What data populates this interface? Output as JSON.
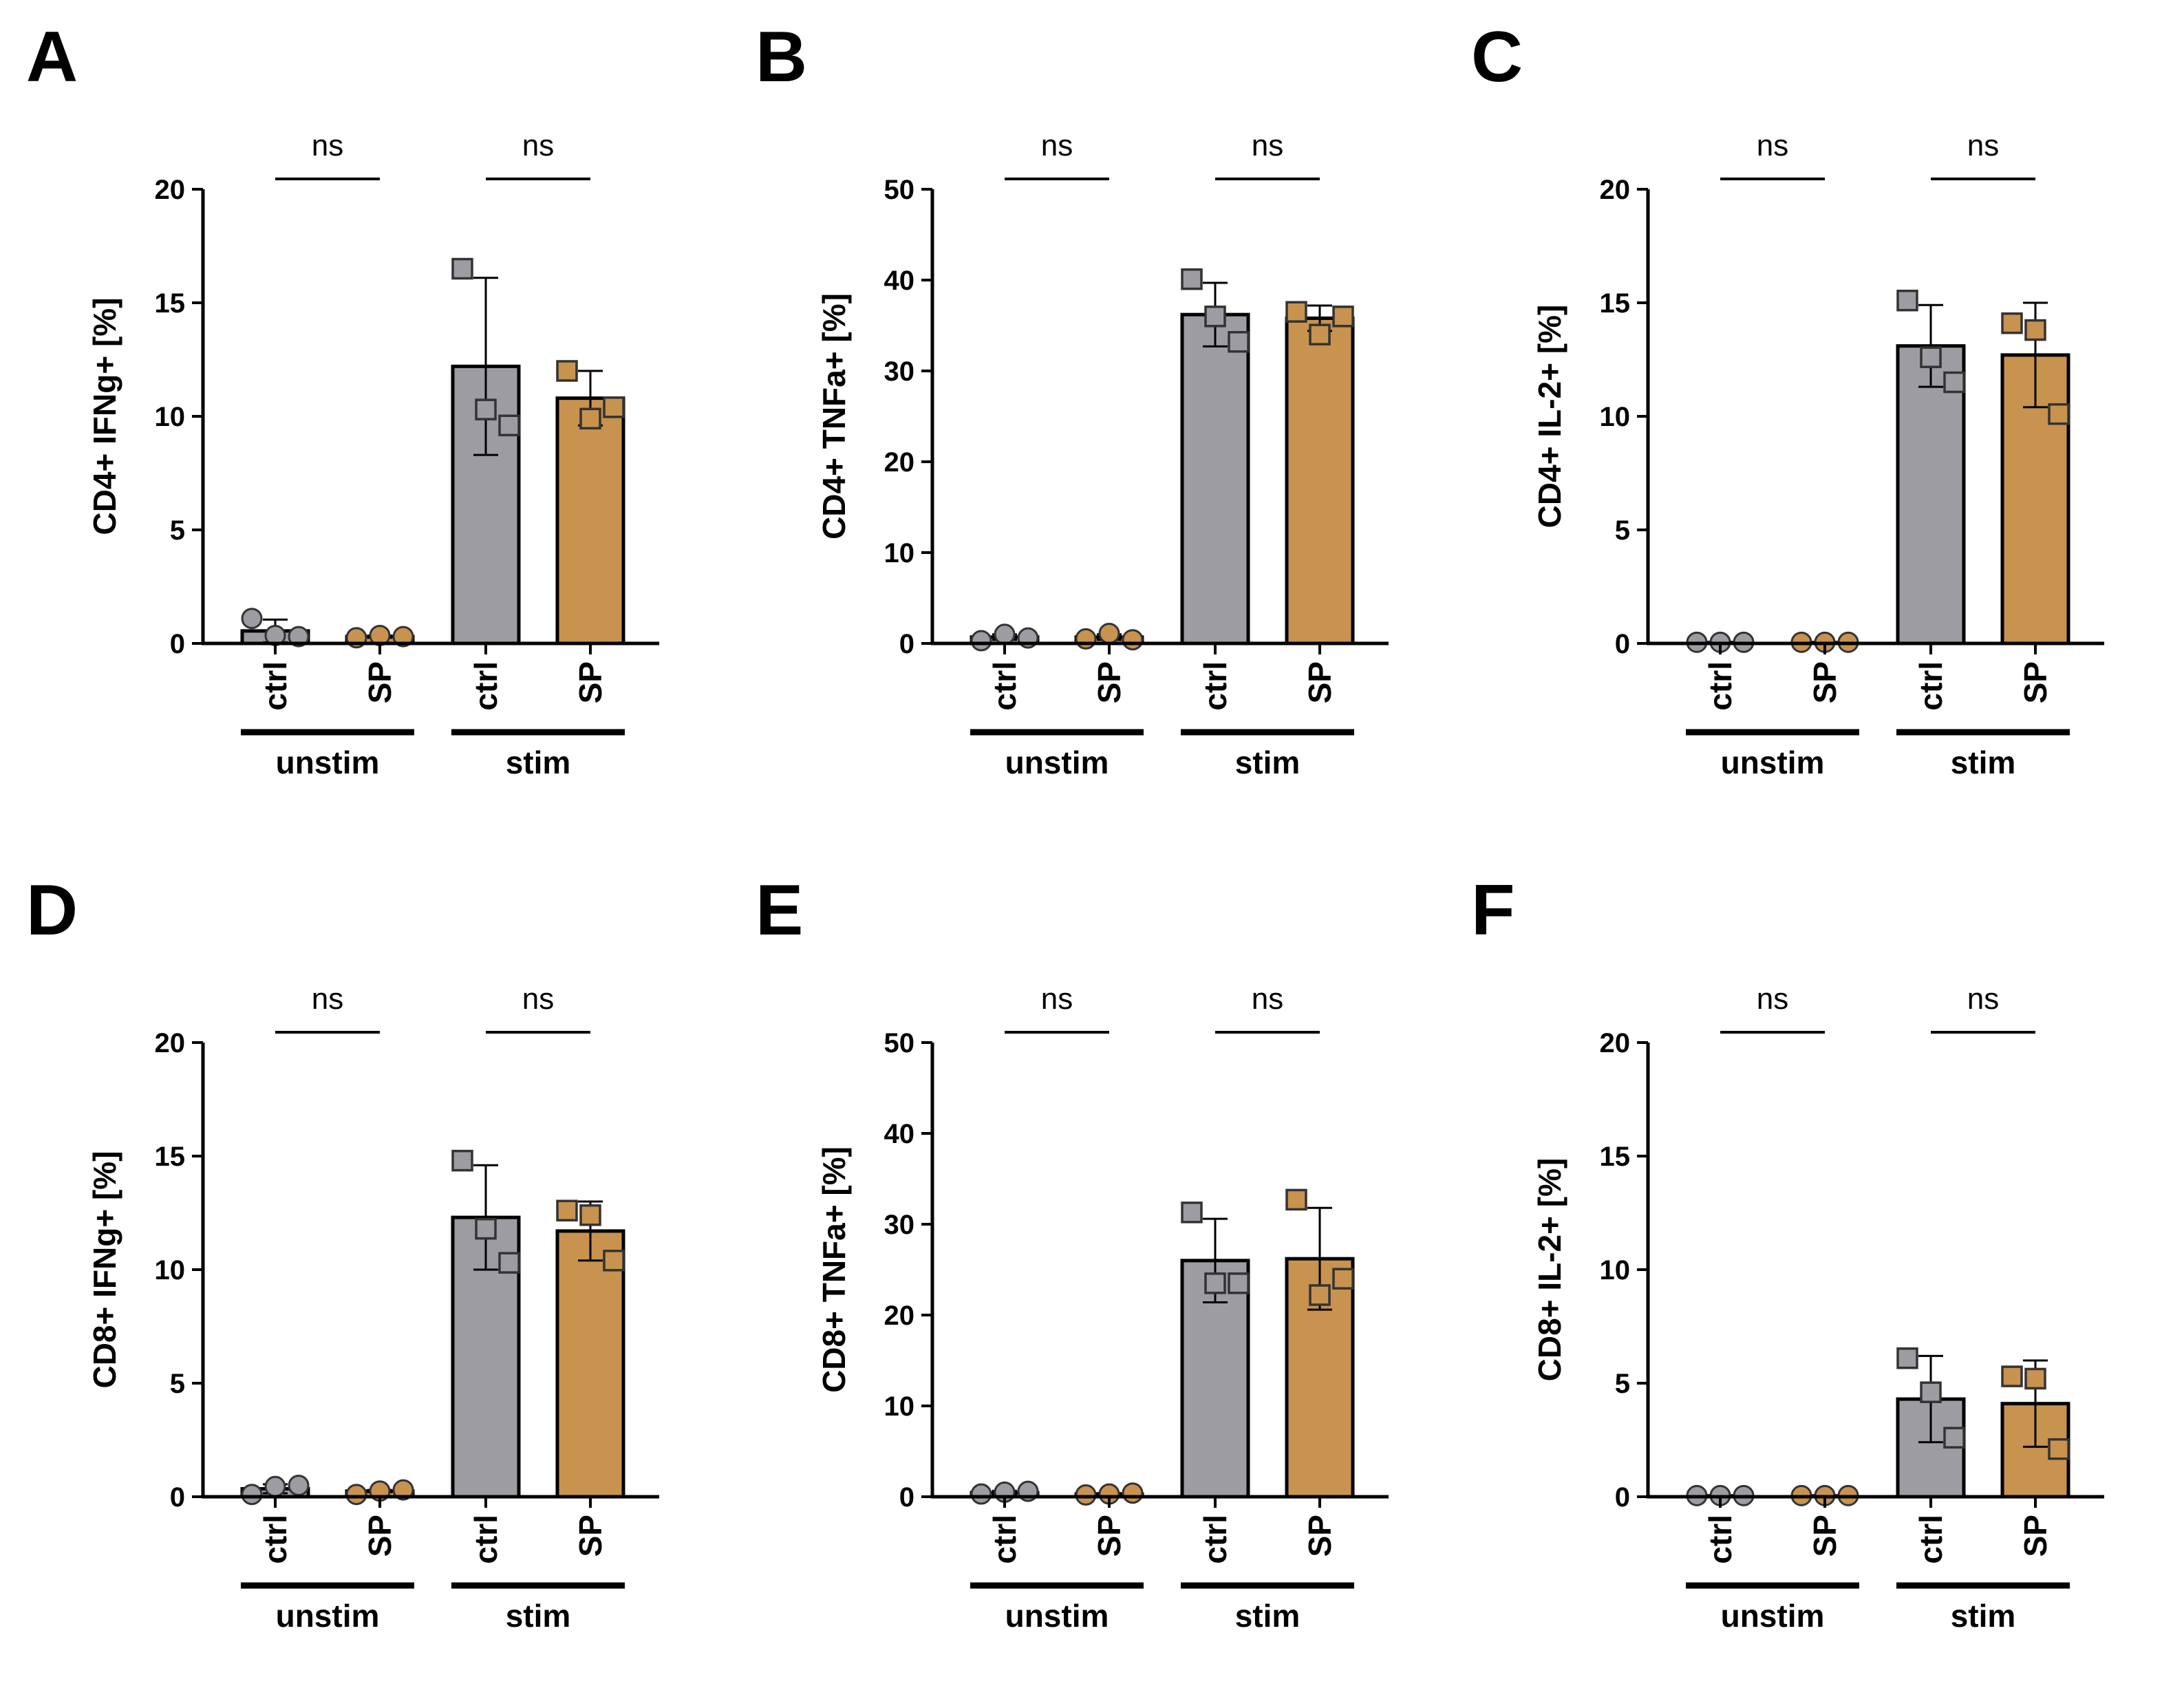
{
  "colors": {
    "ctrl": "#9c9ca2",
    "sp": "#c8924f",
    "ink": "#000000"
  },
  "chart_data": [
    {
      "panel": "A",
      "type": "bar",
      "ylabel": "CD4+ IFNg+ [%]",
      "ylim": [
        0,
        20
      ],
      "yticks": [
        "0",
        "5",
        "10",
        "15",
        "20"
      ],
      "groups": [
        {
          "name": "unstim",
          "significance": "ns"
        },
        {
          "name": "stim",
          "significance": "ns"
        }
      ],
      "bars": [
        {
          "group": "unstim",
          "condition": "ctrl",
          "label": "ctrl",
          "mean": 0.55,
          "sd": 0.5,
          "points": [
            1.1,
            0.35,
            0.3
          ],
          "marker": "circle"
        },
        {
          "group": "unstim",
          "condition": "SP",
          "label": "SP",
          "mean": 0.3,
          "sd": 0.05,
          "points": [
            0.25,
            0.35,
            0.3
          ],
          "marker": "circle"
        },
        {
          "group": "stim",
          "condition": "ctrl",
          "label": "ctrl",
          "mean": 12.2,
          "sd": 3.9,
          "points": [
            16.5,
            10.3,
            9.6
          ],
          "marker": "square"
        },
        {
          "group": "stim",
          "condition": "SP",
          "label": "SP",
          "mean": 10.8,
          "sd": 1.2,
          "points": [
            12.0,
            9.9,
            10.4
          ],
          "marker": "square"
        }
      ]
    },
    {
      "panel": "B",
      "type": "bar",
      "ylabel": "CD4+ TNFa+ [%]",
      "ylim": [
        0,
        50
      ],
      "yticks": [
        "0",
        "10",
        "20",
        "30",
        "40",
        "50"
      ],
      "groups": [
        {
          "name": "unstim",
          "significance": "ns"
        },
        {
          "name": "stim",
          "significance": "ns"
        }
      ],
      "bars": [
        {
          "group": "unstim",
          "condition": "ctrl",
          "label": "ctrl",
          "mean": 0.7,
          "sd": 0.3,
          "points": [
            0.3,
            1.0,
            0.6
          ],
          "marker": "circle"
        },
        {
          "group": "unstim",
          "condition": "SP",
          "label": "SP",
          "mean": 0.7,
          "sd": 0.3,
          "points": [
            0.5,
            1.1,
            0.4
          ],
          "marker": "circle"
        },
        {
          "group": "stim",
          "condition": "ctrl",
          "label": "ctrl",
          "mean": 36.2,
          "sd": 3.5,
          "points": [
            40.1,
            36.0,
            33.2
          ],
          "marker": "square"
        },
        {
          "group": "stim",
          "condition": "SP",
          "label": "SP",
          "mean": 35.8,
          "sd": 1.4,
          "points": [
            36.5,
            34.0,
            36.0
          ],
          "marker": "square"
        }
      ]
    },
    {
      "panel": "C",
      "type": "bar",
      "ylabel": "CD4+ IL-2+ [%]",
      "ylim": [
        0,
        20
      ],
      "yticks": [
        "0",
        "5",
        "10",
        "15",
        "20"
      ],
      "groups": [
        {
          "name": "unstim",
          "significance": "ns"
        },
        {
          "name": "stim",
          "significance": "ns"
        }
      ],
      "bars": [
        {
          "group": "unstim",
          "condition": "ctrl",
          "label": "ctrl",
          "mean": 0.05,
          "sd": 0.02,
          "points": [
            0.05,
            0.05,
            0.05
          ],
          "marker": "circle"
        },
        {
          "group": "unstim",
          "condition": "SP",
          "label": "SP",
          "mean": 0.05,
          "sd": 0.02,
          "points": [
            0.05,
            0.05,
            0.05
          ],
          "marker": "circle"
        },
        {
          "group": "stim",
          "condition": "ctrl",
          "label": "ctrl",
          "mean": 13.1,
          "sd": 1.8,
          "points": [
            15.1,
            12.6,
            11.5
          ],
          "marker": "square"
        },
        {
          "group": "stim",
          "condition": "SP",
          "label": "SP",
          "mean": 12.7,
          "sd": 2.3,
          "points": [
            14.1,
            13.8,
            10.1
          ],
          "marker": "square"
        }
      ]
    },
    {
      "panel": "D",
      "type": "bar",
      "ylabel": "CD8+ IFNg+ [%]",
      "ylim": [
        0,
        20
      ],
      "yticks": [
        "0",
        "5",
        "10",
        "15",
        "20"
      ],
      "groups": [
        {
          "name": "unstim",
          "significance": "ns"
        },
        {
          "name": "stim",
          "significance": "ns"
        }
      ],
      "bars": [
        {
          "group": "unstim",
          "condition": "ctrl",
          "label": "ctrl",
          "mean": 0.35,
          "sd": 0.2,
          "points": [
            0.1,
            0.45,
            0.5
          ],
          "marker": "circle"
        },
        {
          "group": "unstim",
          "condition": "SP",
          "label": "SP",
          "mean": 0.25,
          "sd": 0.05,
          "points": [
            0.1,
            0.25,
            0.3
          ],
          "marker": "circle"
        },
        {
          "group": "stim",
          "condition": "ctrl",
          "label": "ctrl",
          "mean": 12.3,
          "sd": 2.3,
          "points": [
            14.8,
            11.8,
            10.3
          ],
          "marker": "square"
        },
        {
          "group": "stim",
          "condition": "SP",
          "label": "SP",
          "mean": 11.7,
          "sd": 1.3,
          "points": [
            12.6,
            12.4,
            10.4
          ],
          "marker": "square"
        }
      ]
    },
    {
      "panel": "E",
      "type": "bar",
      "ylabel": "CD8+ TNFa+  [%]",
      "ylim": [
        0,
        50
      ],
      "yticks": [
        "0",
        "10",
        "20",
        "30",
        "40",
        "50"
      ],
      "groups": [
        {
          "name": "unstim",
          "significance": "ns"
        },
        {
          "name": "stim",
          "significance": "ns"
        }
      ],
      "bars": [
        {
          "group": "unstim",
          "condition": "ctrl",
          "label": "ctrl",
          "mean": 0.45,
          "sd": 0.2,
          "points": [
            0.3,
            0.5,
            0.6
          ],
          "marker": "circle"
        },
        {
          "group": "unstim",
          "condition": "SP",
          "label": "SP",
          "mean": 0.3,
          "sd": 0.1,
          "points": [
            0.2,
            0.3,
            0.4
          ],
          "marker": "circle"
        },
        {
          "group": "stim",
          "condition": "ctrl",
          "label": "ctrl",
          "mean": 26.0,
          "sd": 4.6,
          "points": [
            31.3,
            23.5,
            23.5
          ],
          "marker": "square"
        },
        {
          "group": "stim",
          "condition": "SP",
          "label": "SP",
          "mean": 26.2,
          "sd": 5.6,
          "points": [
            32.7,
            22.2,
            24.0
          ],
          "marker": "square"
        }
      ]
    },
    {
      "panel": "F",
      "type": "bar",
      "ylabel": "CD8+ IL-2+ [%]",
      "ylim": [
        0,
        20
      ],
      "yticks": [
        "0",
        "5",
        "10",
        "15",
        "20"
      ],
      "groups": [
        {
          "name": "unstim",
          "significance": "ns"
        },
        {
          "name": "stim",
          "significance": "ns"
        }
      ],
      "bars": [
        {
          "group": "unstim",
          "condition": "ctrl",
          "label": "ctrl",
          "mean": 0.05,
          "sd": 0.02,
          "points": [
            0.05,
            0.05,
            0.05
          ],
          "marker": "circle"
        },
        {
          "group": "unstim",
          "condition": "SP",
          "label": "SP",
          "mean": 0.05,
          "sd": 0.02,
          "points": [
            0.05,
            0.05,
            0.05
          ],
          "marker": "circle"
        },
        {
          "group": "stim",
          "condition": "ctrl",
          "label": "ctrl",
          "mean": 4.3,
          "sd": 1.9,
          "points": [
            6.1,
            4.6,
            2.6
          ],
          "marker": "square"
        },
        {
          "group": "stim",
          "condition": "SP",
          "label": "SP",
          "mean": 4.1,
          "sd": 1.9,
          "points": [
            5.3,
            5.2,
            2.1
          ],
          "marker": "square"
        }
      ]
    }
  ]
}
